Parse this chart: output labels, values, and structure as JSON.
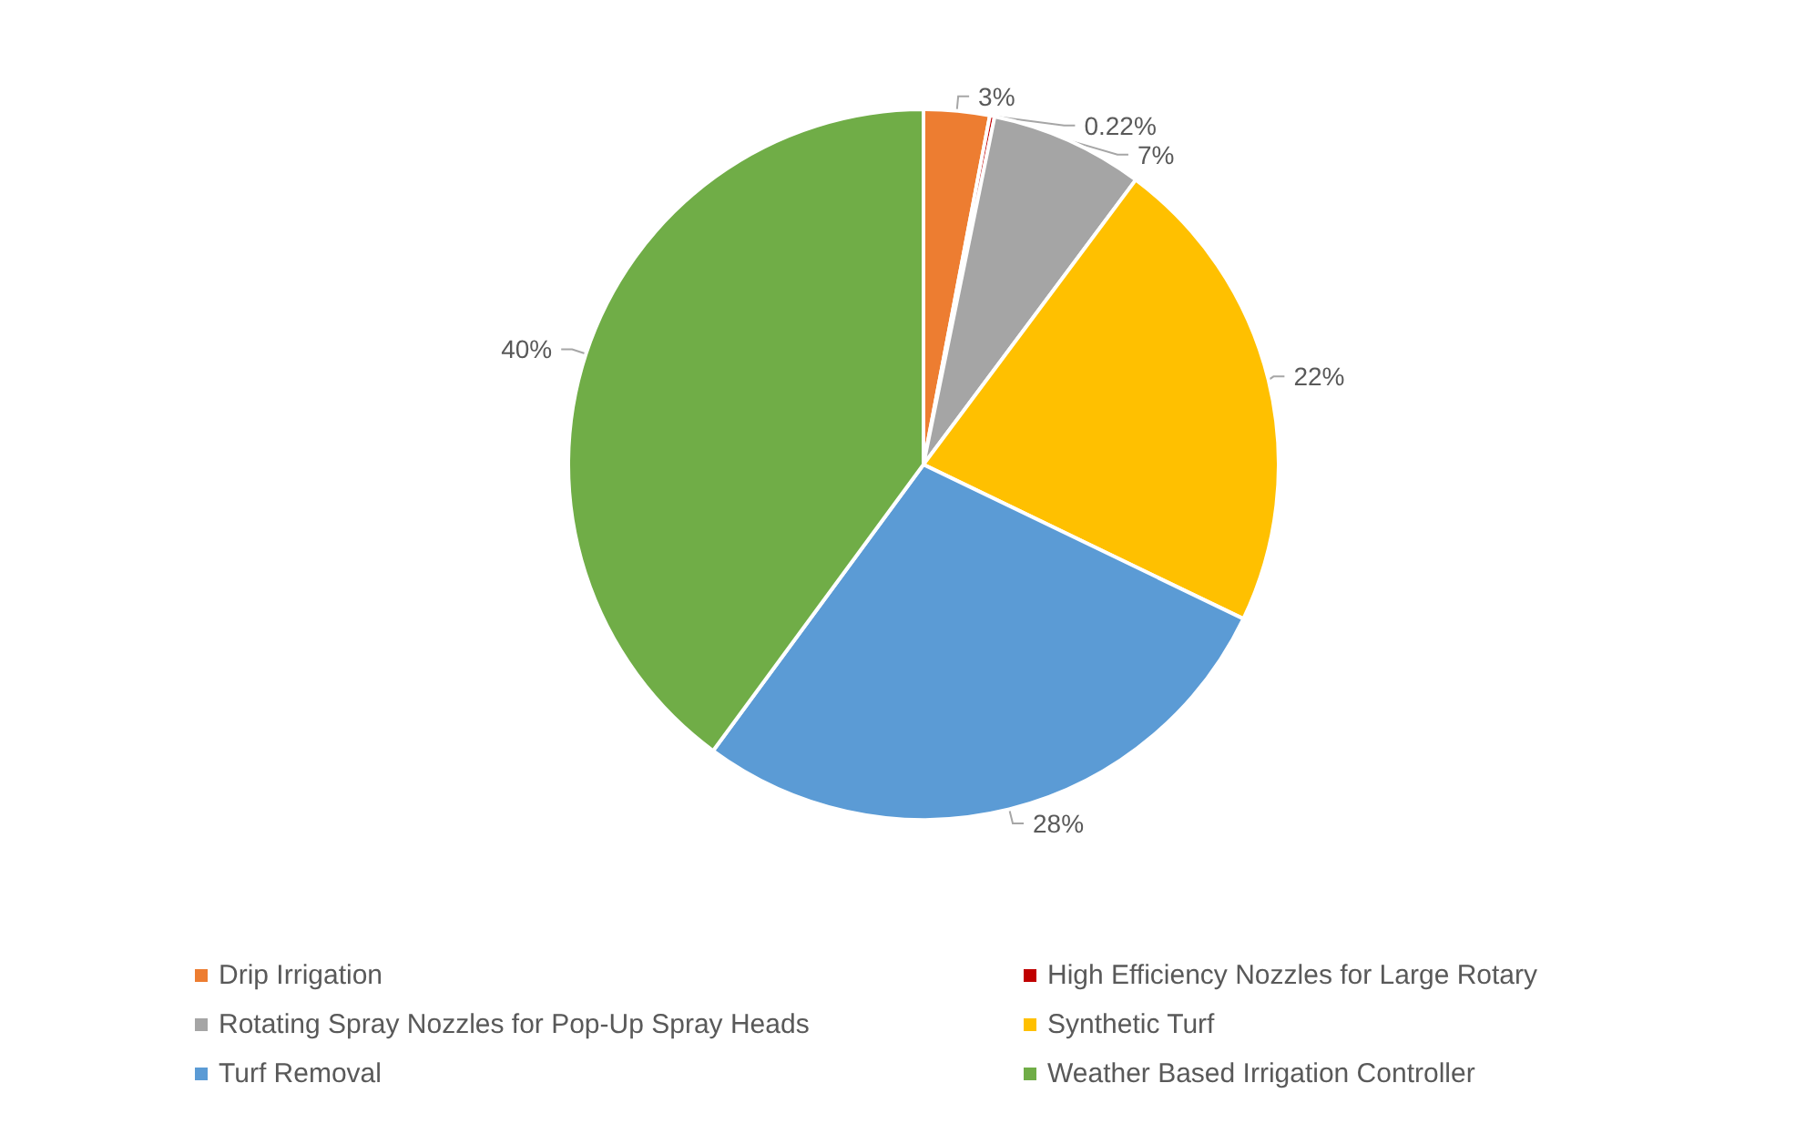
{
  "chart_data": {
    "type": "pie",
    "categories": [
      "Drip Irrigation",
      "High Efficiency Nozzles for Large Rotary",
      "Rotating Spray Nozzles for Pop-Up Spray Heads",
      "Synthetic Turf",
      "Turf Removal",
      "Weather Based Irrigation Controller"
    ],
    "values": [
      3,
      0.22,
      7,
      22,
      28,
      40
    ],
    "value_labels": [
      "3%",
      "0.22%",
      "7%",
      "22%",
      "28%",
      "40%"
    ],
    "colors": [
      "#ed7d31",
      "#c00000",
      "#a5a5a5",
      "#ffc000",
      "#5b9bd5",
      "#70ad47"
    ],
    "legend": "bottom"
  }
}
